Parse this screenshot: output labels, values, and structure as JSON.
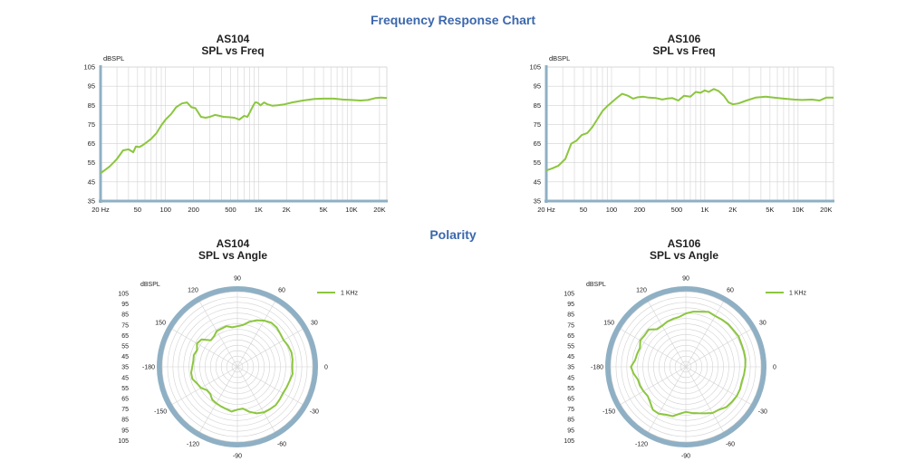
{
  "page": {
    "title": "Frequency Response Chart",
    "polarity_title": "Polarity"
  },
  "colors": {
    "series": "#8cc63f",
    "axis": "#8fb0c4",
    "grid": "#d2d2d2",
    "heading": "#3b67ad"
  },
  "chart_data": [
    {
      "type": "line",
      "model": "AS104",
      "title": "SPL vs Freq",
      "ylabel": "dBSPL",
      "xscale": "log",
      "xlim": [
        20,
        24000
      ],
      "ylim": [
        35,
        105
      ],
      "y_ticks": [
        35,
        45,
        55,
        65,
        75,
        85,
        95,
        105
      ],
      "x_ticks": [
        {
          "value": 20,
          "label": "20 Hz"
        },
        {
          "value": 50,
          "label": "50"
        },
        {
          "value": 100,
          "label": "100"
        },
        {
          "value": 200,
          "label": "200"
        },
        {
          "value": 500,
          "label": "500"
        },
        {
          "value": 1000,
          "label": "1K"
        },
        {
          "value": 2000,
          "label": "2K"
        },
        {
          "value": 5000,
          "label": "5K"
        },
        {
          "value": 10000,
          "label": "10K"
        },
        {
          "value": 20000,
          "label": "20K"
        }
      ],
      "grid": true,
      "series": [
        {
          "x": [
            20,
            25,
            30,
            35,
            40,
            45,
            48,
            52,
            56,
            62,
            70,
            80,
            90,
            100,
            115,
            130,
            150,
            170,
            190,
            210,
            240,
            270,
            300,
            340,
            380,
            420,
            480,
            550,
            620,
            700,
            760,
            820,
            870,
            920,
            960,
            1000,
            1050,
            1150,
            1250,
            1400,
            1600,
            1900,
            2300,
            3000,
            4000,
            5000,
            6500,
            8000,
            10000,
            12500,
            15000,
            18000,
            21000,
            24000
          ],
          "y": [
            49.5,
            53,
            57,
            61.5,
            62,
            60.5,
            63.5,
            63.2,
            64,
            65.5,
            67.5,
            70.5,
            74.5,
            77.5,
            80.5,
            84,
            86,
            86.5,
            84,
            83.5,
            79,
            78.5,
            79,
            80,
            79.5,
            79,
            78.8,
            78.5,
            77.5,
            79.5,
            79,
            82,
            84.5,
            86.5,
            86.5,
            86,
            85,
            86.5,
            85.5,
            84.8,
            85,
            85.5,
            86.5,
            87.5,
            88.3,
            88.5,
            88.5,
            88,
            87.8,
            87.5,
            87.8,
            88.8,
            89,
            88.8
          ]
        }
      ]
    },
    {
      "type": "line",
      "model": "AS106",
      "title": "SPL vs Freq",
      "ylabel": "dBSPL",
      "xscale": "log",
      "xlim": [
        20,
        24000
      ],
      "ylim": [
        35,
        105
      ],
      "y_ticks": [
        35,
        45,
        55,
        65,
        75,
        85,
        95,
        105
      ],
      "x_ticks": [
        {
          "value": 20,
          "label": "20 Hz"
        },
        {
          "value": 50,
          "label": "50"
        },
        {
          "value": 100,
          "label": "100"
        },
        {
          "value": 200,
          "label": "200"
        },
        {
          "value": 500,
          "label": "500"
        },
        {
          "value": 1000,
          "label": "1K"
        },
        {
          "value": 2000,
          "label": "2K"
        },
        {
          "value": 5000,
          "label": "5K"
        },
        {
          "value": 10000,
          "label": "10K"
        },
        {
          "value": 20000,
          "label": "20K"
        }
      ],
      "grid": true,
      "series": [
        {
          "x": [
            20,
            23,
            27,
            32,
            37,
            42,
            48,
            55,
            62,
            70,
            80,
            90,
            100,
            115,
            130,
            150,
            170,
            190,
            220,
            250,
            300,
            350,
            400,
            450,
            520,
            600,
            700,
            800,
            900,
            1000,
            1100,
            1250,
            1400,
            1600,
            1800,
            2000,
            2300,
            2800,
            3500,
            4500,
            5500,
            7000,
            9000,
            11000,
            14000,
            17000,
            20000,
            24000
          ],
          "y": [
            51,
            52,
            53.5,
            57,
            65,
            66.5,
            69.5,
            70.5,
            73.5,
            77.5,
            82,
            84.5,
            86.5,
            89,
            91,
            90,
            88.5,
            89.2,
            89.5,
            89,
            88.8,
            88,
            88.6,
            88.8,
            87.5,
            90,
            89.5,
            92,
            91.5,
            92.8,
            92,
            93.5,
            92.5,
            90,
            86.5,
            85.5,
            86,
            87.5,
            89,
            89.5,
            89,
            88.5,
            88,
            87.8,
            88,
            87.5,
            89,
            89
          ]
        }
      ]
    },
    {
      "type": "polar",
      "model": "AS104",
      "title": "SPL vs Angle",
      "rlabel": "dBSPL",
      "legend": "1 KHz",
      "legend_position": "top-right",
      "r_scale_labels": [
        "105",
        "95",
        "85",
        "75",
        "65",
        "55",
        "45",
        "35",
        "45",
        "55",
        "65",
        "75",
        "85",
        "95",
        "105"
      ],
      "angle_labels": [
        {
          "deg": 0,
          "label": "0"
        },
        {
          "deg": 30,
          "label": "30"
        },
        {
          "deg": 60,
          "label": "60"
        },
        {
          "deg": 90,
          "label": "90"
        },
        {
          "deg": 120,
          "label": "120"
        },
        {
          "deg": 150,
          "label": "150"
        },
        {
          "deg": 180,
          "label": "-180"
        },
        {
          "deg": 210,
          "label": "-150"
        },
        {
          "deg": 240,
          "label": "-120"
        },
        {
          "deg": 270,
          "label": "-90"
        },
        {
          "deg": 300,
          "label": "-60"
        },
        {
          "deg": 330,
          "label": "-30"
        }
      ],
      "r_fractions": [
        0.73,
        0.74,
        0.745,
        0.73,
        0.71,
        0.72,
        0.74,
        0.74,
        0.71,
        0.67,
        0.62,
        0.56,
        0.54,
        0.53,
        0.56,
        0.55,
        0.55,
        0.51,
        0.5,
        0.6,
        0.62,
        0.58,
        0.6,
        0.59,
        0.6,
        0.62,
        0.62,
        0.58,
        0.56,
        0.51,
        0.51,
        0.55,
        0.56,
        0.57,
        0.58,
        0.6,
        0.57,
        0.56,
        0.62,
        0.67,
        0.7,
        0.71,
        0.72,
        0.71,
        0.7,
        0.71,
        0.72,
        0.74
      ]
    },
    {
      "type": "polar",
      "model": "AS106",
      "title": "SPL vs Angle",
      "rlabel": "dBSPL",
      "legend": "1 KHz",
      "legend_position": "top-right",
      "r_scale_labels": [
        "105",
        "95",
        "85",
        "75",
        "65",
        "55",
        "45",
        "35",
        "45",
        "55",
        "65",
        "75",
        "85",
        "95",
        "105"
      ],
      "angle_labels": [
        {
          "deg": 0,
          "label": "0"
        },
        {
          "deg": 30,
          "label": "30"
        },
        {
          "deg": 60,
          "label": "60"
        },
        {
          "deg": 90,
          "label": "90"
        },
        {
          "deg": 120,
          "label": "120"
        },
        {
          "deg": 150,
          "label": "150"
        },
        {
          "deg": 180,
          "label": "-180"
        },
        {
          "deg": 210,
          "label": "-150"
        },
        {
          "deg": 240,
          "label": "-120"
        },
        {
          "deg": 270,
          "label": "-90"
        },
        {
          "deg": 300,
          "label": "-60"
        },
        {
          "deg": 330,
          "label": "-30"
        }
      ],
      "r_fractions": [
        0.79,
        0.8,
        0.8,
        0.8,
        0.81,
        0.8,
        0.8,
        0.79,
        0.78,
        0.79,
        0.76,
        0.74,
        0.71,
        0.67,
        0.66,
        0.65,
        0.63,
        0.63,
        0.7,
        0.69,
        0.7,
        0.66,
        0.67,
        0.68,
        0.73,
        0.7,
        0.66,
        0.66,
        0.65,
        0.64,
        0.67,
        0.72,
        0.72,
        0.69,
        0.68,
        0.63,
        0.6,
        0.62,
        0.64,
        0.67,
        0.71,
        0.72,
        0.76,
        0.77,
        0.78,
        0.78,
        0.77,
        0.78
      ]
    }
  ]
}
